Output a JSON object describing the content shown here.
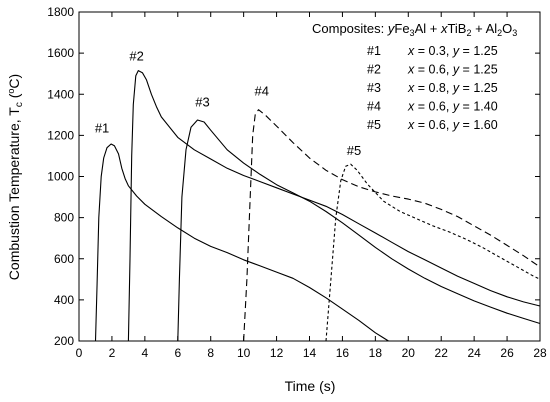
{
  "chart_data": {
    "type": "line",
    "xlabel": "Time (s)",
    "ylabel_main": "Combustion Temperature, T",
    "ylabel_sub": "c",
    "ylabel_unit_open": " (",
    "ylabel_unit_sup": "o",
    "ylabel_unit_close": "C)",
    "xlim": [
      0,
      28
    ],
    "ylim": [
      200,
      1800
    ],
    "xticks": [
      0,
      2,
      4,
      6,
      8,
      10,
      12,
      14,
      16,
      18,
      20,
      22,
      24,
      26,
      28
    ],
    "yticks": [
      200,
      400,
      600,
      800,
      1000,
      1200,
      1400,
      1600,
      1800
    ],
    "grid": false,
    "legend": {
      "position": "top-right",
      "title_parts": [
        "Composites: ",
        "y",
        "Fe",
        "3",
        "Al + ",
        "x",
        "TiB",
        "2",
        " + Al",
        "2",
        "O",
        "3"
      ],
      "entries": [
        {
          "id": "#1",
          "x": "0.3",
          "y": "1.25"
        },
        {
          "id": "#2",
          "x": "0.6",
          "y": "1.25"
        },
        {
          "id": "#3",
          "x": "0.8",
          "y": "1.25"
        },
        {
          "id": "#4",
          "x": "0.6",
          "y": "1.40"
        },
        {
          "id": "#5",
          "x": "0.6",
          "y": "1.60"
        }
      ]
    },
    "series": [
      {
        "name": "#1",
        "style": "solid",
        "points": [
          [
            1.0,
            200
          ],
          [
            1.1,
            480
          ],
          [
            1.2,
            800
          ],
          [
            1.35,
            1000
          ],
          [
            1.5,
            1090
          ],
          [
            1.7,
            1140
          ],
          [
            1.95,
            1158
          ],
          [
            2.15,
            1150
          ],
          [
            2.4,
            1110
          ],
          [
            2.6,
            1040
          ],
          [
            2.8,
            990
          ],
          [
            3.0,
            955
          ],
          [
            3.5,
            905
          ],
          [
            4,
            865
          ],
          [
            5,
            805
          ],
          [
            6,
            750
          ],
          [
            7,
            700
          ],
          [
            8,
            660
          ],
          [
            9,
            630
          ],
          [
            10,
            595
          ],
          [
            11,
            565
          ],
          [
            12,
            535
          ],
          [
            13,
            505
          ],
          [
            14,
            460
          ],
          [
            15,
            410
          ],
          [
            16,
            355
          ],
          [
            17,
            300
          ],
          [
            18,
            240
          ],
          [
            18.8,
            200
          ]
        ],
        "label_at": [
          1.4,
          1215
        ]
      },
      {
        "name": "#2",
        "style": "solid",
        "points": [
          [
            3.0,
            200
          ],
          [
            3.1,
            600
          ],
          [
            3.2,
            1100
          ],
          [
            3.3,
            1350
          ],
          [
            3.45,
            1490
          ],
          [
            3.6,
            1515
          ],
          [
            3.85,
            1505
          ],
          [
            4.1,
            1470
          ],
          [
            4.4,
            1400
          ],
          [
            4.7,
            1340
          ],
          [
            5,
            1290
          ],
          [
            6,
            1190
          ],
          [
            7,
            1130
          ],
          [
            8,
            1085
          ],
          [
            9,
            1040
          ],
          [
            10,
            1005
          ],
          [
            11,
            975
          ],
          [
            12,
            945
          ],
          [
            13,
            915
          ],
          [
            14,
            885
          ],
          [
            15,
            855
          ],
          [
            16,
            815
          ],
          [
            17,
            770
          ],
          [
            18,
            725
          ],
          [
            19,
            680
          ],
          [
            20,
            635
          ],
          [
            21,
            595
          ],
          [
            22,
            555
          ],
          [
            23,
            515
          ],
          [
            24,
            480
          ],
          [
            25,
            445
          ],
          [
            26,
            415
          ],
          [
            27,
            390
          ],
          [
            28,
            370
          ]
        ],
        "label_at": [
          3.5,
          1565
        ]
      },
      {
        "name": "#3",
        "style": "solid",
        "points": [
          [
            6.0,
            200
          ],
          [
            6.1,
            500
          ],
          [
            6.25,
            900
          ],
          [
            6.5,
            1130
          ],
          [
            6.8,
            1240
          ],
          [
            7.2,
            1275
          ],
          [
            7.6,
            1265
          ],
          [
            8.0,
            1225
          ],
          [
            9,
            1130
          ],
          [
            10,
            1065
          ],
          [
            11,
            1010
          ],
          [
            12,
            960
          ],
          [
            13,
            920
          ],
          [
            14,
            880
          ],
          [
            15,
            830
          ],
          [
            16,
            775
          ],
          [
            17,
            715
          ],
          [
            18,
            655
          ],
          [
            19,
            600
          ],
          [
            20,
            550
          ],
          [
            21,
            505
          ],
          [
            22,
            465
          ],
          [
            23,
            430
          ],
          [
            24,
            395
          ],
          [
            25,
            365
          ],
          [
            26,
            335
          ],
          [
            27,
            310
          ],
          [
            28,
            285
          ]
        ],
        "label_at": [
          7.5,
          1340
        ]
      },
      {
        "name": "#4",
        "style": "dash",
        "points": [
          [
            10.0,
            200
          ],
          [
            10.2,
            500
          ],
          [
            10.4,
            900
          ],
          [
            10.55,
            1200
          ],
          [
            10.7,
            1300
          ],
          [
            10.9,
            1325
          ],
          [
            11.3,
            1300
          ],
          [
            12,
            1245
          ],
          [
            13,
            1165
          ],
          [
            14,
            1090
          ],
          [
            15,
            1030
          ],
          [
            16,
            985
          ],
          [
            17,
            950
          ],
          [
            18,
            925
          ],
          [
            19,
            905
          ],
          [
            20,
            890
          ],
          [
            21,
            870
          ],
          [
            22,
            840
          ],
          [
            23,
            805
          ],
          [
            24,
            760
          ],
          [
            25,
            715
          ],
          [
            26,
            665
          ],
          [
            27,
            615
          ],
          [
            28,
            560
          ]
        ],
        "label_at": [
          11.1,
          1395
        ]
      },
      {
        "name": "#5",
        "style": "dash",
        "points": [
          [
            15.0,
            200
          ],
          [
            15.3,
            500
          ],
          [
            15.6,
            800
          ],
          [
            15.9,
            980
          ],
          [
            16.2,
            1050
          ],
          [
            16.5,
            1060
          ],
          [
            16.9,
            1030
          ],
          [
            17.5,
            965
          ],
          [
            18.5,
            880
          ],
          [
            19.5,
            830
          ],
          [
            20.5,
            795
          ],
          [
            21.5,
            760
          ],
          [
            22.5,
            730
          ],
          [
            23.5,
            695
          ],
          [
            24.5,
            655
          ],
          [
            25.5,
            610
          ],
          [
            26.5,
            565
          ],
          [
            27.5,
            520
          ],
          [
            28,
            500
          ]
        ],
        "label_at": [
          16.7,
          1105
        ]
      }
    ]
  }
}
